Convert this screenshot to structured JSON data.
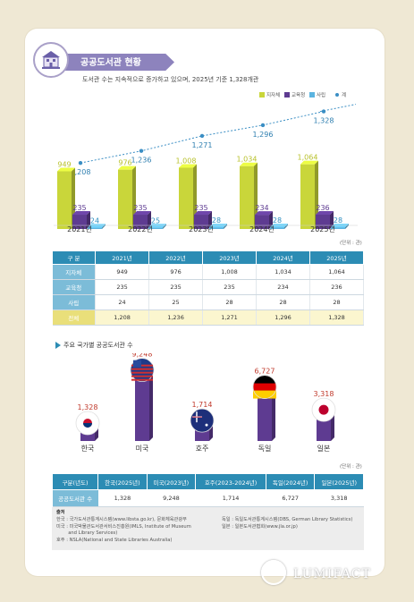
{
  "header": {
    "title": "공공도서관 현황",
    "subtitle": "도서관 수는 지속적으로 증가하고 있으며, 2025년 기준 1,328개관"
  },
  "colors": {
    "local": "#c9d63a",
    "edu": "#5e3b91",
    "private": "#5bb4e0",
    "total_line": "#3a8ec4",
    "table_header": "#2c8cb4",
    "total_row": "#fbf6cf"
  },
  "chart_data": [
    {
      "type": "bar",
      "categories": [
        "2021년",
        "2022년",
        "2023년",
        "2024년",
        "2025년"
      ],
      "series": [
        {
          "name": "지자체",
          "values": [
            949,
            976,
            1008,
            1034,
            1064
          ]
        },
        {
          "name": "교육청",
          "values": [
            235,
            235,
            235,
            234,
            236
          ]
        },
        {
          "name": "사립",
          "values": [
            24,
            25,
            28,
            28,
            28
          ]
        },
        {
          "name": "계",
          "values": [
            1208,
            1236,
            1271,
            1296,
            1328
          ]
        }
      ],
      "legend": "top-right",
      "unit_label": "(단위 : 관)"
    },
    {
      "type": "bar",
      "title": "주요 국가별 공공도서관 수",
      "categories": [
        "한국",
        "미국",
        "호주",
        "독일",
        "일본"
      ],
      "values": [
        1328,
        9248,
        1714,
        6727,
        3318
      ],
      "value_labels": [
        "1,328",
        "9,248",
        "1,714",
        "6,727",
        "3,318"
      ],
      "unit_label": "(단위 : 관)"
    }
  ],
  "table1": {
    "headers": [
      "구 분",
      "2021년",
      "2022년",
      "2023년",
      "2024년",
      "2025년"
    ],
    "rows": [
      {
        "label": "지자체",
        "cells": [
          "949",
          "976",
          "1,008",
          "1,034",
          "1,064"
        ]
      },
      {
        "label": "교육청",
        "cells": [
          "235",
          "235",
          "235",
          "234",
          "236"
        ]
      },
      {
        "label": "사립",
        "cells": [
          "24",
          "25",
          "28",
          "28",
          "28"
        ]
      },
      {
        "label": "전체",
        "cells": [
          "1,208",
          "1,236",
          "1,271",
          "1,296",
          "1,328"
        ]
      }
    ]
  },
  "table2": {
    "headers": [
      "구분(년도)",
      "한국(2025년)",
      "미국(2023년)",
      "호주(2023-2024년)",
      "독일(2024년)",
      "일본(2025년)"
    ],
    "row_label": "공공도서관 수",
    "cells": [
      "1,328",
      "9,248",
      "1,714",
      "6,727",
      "3,318"
    ]
  },
  "notes": {
    "title": "출처",
    "left": [
      "한국 : 국가도서관통계시스템(www.libsta.go.kr), 문화체육관광부",
      "미국 : 미국박물관도서관서비스진흥원(IMLS, Institute of Museum",
      "        and Library Services)",
      "호주 : NSLA(National and State Libraries Australia)"
    ],
    "right": [
      "독일 : 독일도서관통계시스템(DBS, German Library Statistics)",
      "일본 : 일본도서관협회(www.jla.or.jp)"
    ]
  },
  "logo": {
    "text": "LUMIFACT"
  }
}
